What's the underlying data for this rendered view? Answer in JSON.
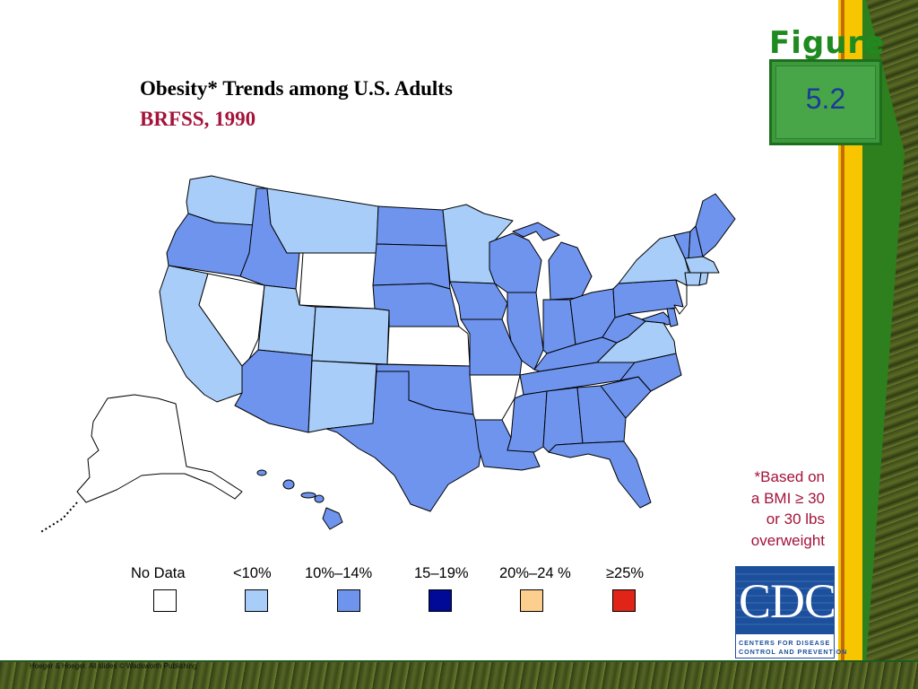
{
  "slide": {
    "figure_word": "Figure",
    "figure_number": "5.2",
    "title": "Obesity* Trends among U.S. Adults",
    "subtitle": "BRFSS, 1990",
    "note_lines": [
      "*Based on",
      "a BMI ≥ 30",
      "or 30 lbs",
      "overweight"
    ],
    "credit": "Hoeger & Hoeger. All slides © Wadsworth Publishing"
  },
  "legend": [
    {
      "label": "No Data",
      "color": "#ffffff"
    },
    {
      "label": "<10%",
      "color": "#a8cdf8"
    },
    {
      "label": "10%–14%",
      "color": "#6f94ee"
    },
    {
      "label": "15–19%",
      "color": "#000a96"
    },
    {
      "label": "20%–24 %",
      "color": "#fccf8e"
    },
    {
      "label": "≥25%",
      "color": "#e02418"
    }
  ],
  "cdc_logo": {
    "letters": "CDC",
    "line1": "Centers for Disease",
    "line2": "Control and Prevention"
  },
  "map_data": {
    "category_by_state": {
      "WA": "<10%",
      "MT": "<10%",
      "CA": "<10%",
      "UT": "<10%",
      "CO": "<10%",
      "NM": "<10%",
      "MN": "<10%",
      "NY": "<10%",
      "VA": "<10%",
      "MA": "<10%",
      "CT": "<10%",
      "RI": "<10%",
      "OR": "10%–14%",
      "ID": "10%–14%",
      "AZ": "10%–14%",
      "ND": "10%–14%",
      "SD": "10%–14%",
      "NE": "10%–14%",
      "OK": "10%–14%",
      "TX": "10%–14%",
      "IA": "10%–14%",
      "MO": "10%–14%",
      "LA": "10%–14%",
      "WI": "10%–14%",
      "IL": "10%–14%",
      "MI": "10%–14%",
      "IN": "10%–14%",
      "OH": "10%–14%",
      "KY": "10%–14%",
      "TN": "10%–14%",
      "MS": "10%–14%",
      "AL": "10%–14%",
      "GA": "10%–14%",
      "FL": "10%–14%",
      "SC": "10%–14%",
      "NC": "10%–14%",
      "WV": "10%–14%",
      "PA": "10%–14%",
      "MD": "10%–14%",
      "DE": "10%–14%",
      "VT": "10%–14%",
      "NH": "10%–14%",
      "ME": "10%–14%",
      "HI": "10%–14%",
      "NV": "No Data",
      "WY": "No Data",
      "KS": "No Data",
      "AR": "No Data",
      "NJ": "No Data",
      "AK": "No Data"
    }
  }
}
